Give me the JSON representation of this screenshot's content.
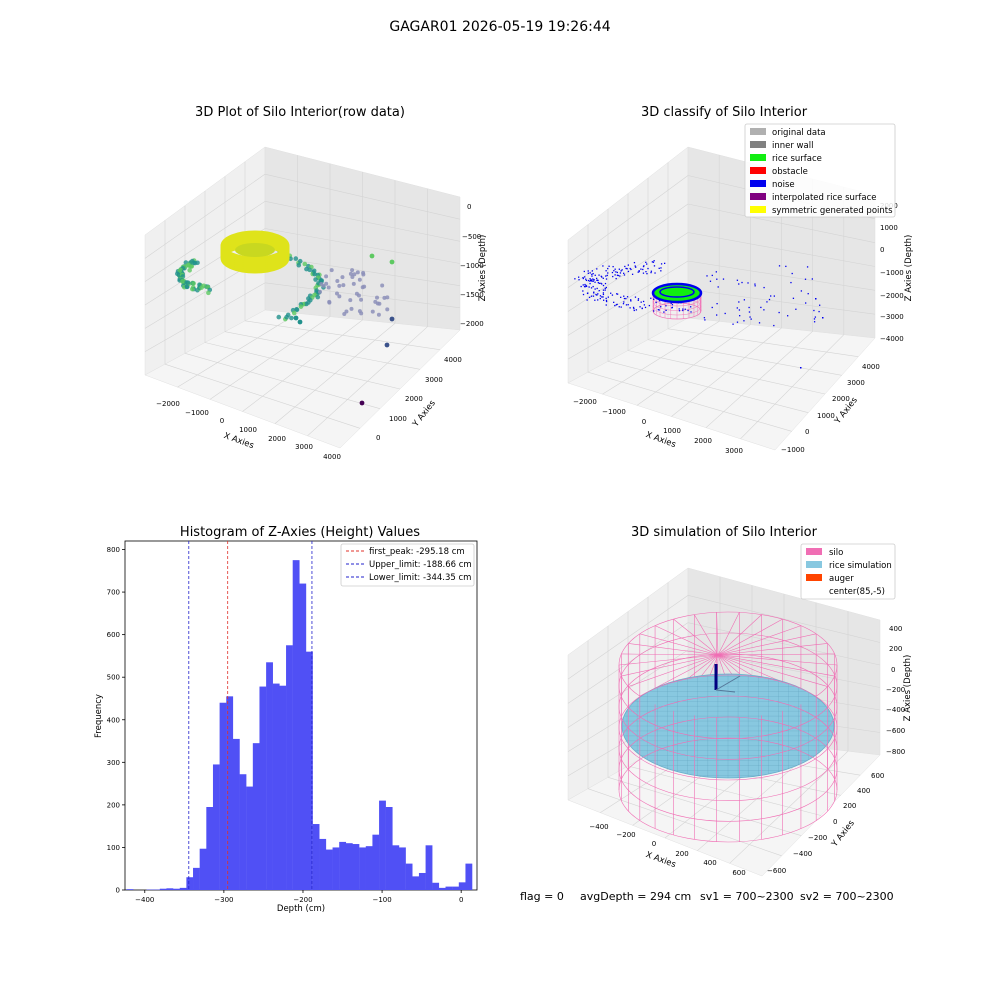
{
  "figure": {
    "suptitle": "GAGAR01 2026-05-19 19:26:44",
    "status": {
      "flag": "flag = 0",
      "avg_depth": "avgDepth = 294 cm",
      "sv1": "sv1 = 700~2300",
      "sv2": "sv2 = 700~2300"
    }
  },
  "colors": {
    "hist_bar": "#5050f5",
    "first_peak": "#e0302a",
    "limits": "#2222cc",
    "silo": "#f06eb4",
    "rice": "#88c8e0",
    "auger": "#ff4400",
    "noise": "#0000ee",
    "rice_surface": "#11ee11"
  },
  "chart_data": [
    {
      "type": "scatter",
      "projection": "3d",
      "title": "3D Plot of Silo Interior(row data)",
      "xlabel": "X Axies",
      "ylabel": "Y Axies",
      "zlabel": "Z Axies (Depth)",
      "x_ticks": [
        "−2000",
        "−1000",
        "0",
        "1000",
        "2000",
        "3000",
        "4000"
      ],
      "y_ticks": [
        "0",
        "1000",
        "2000",
        "3000",
        "4000"
      ],
      "z_ticks": [
        "0",
        "−500",
        "−1000",
        "−1500",
        "−2000"
      ],
      "xlim": [
        -2500,
        4000
      ],
      "ylim": [
        -500,
        4500
      ],
      "zlim": [
        -2300,
        100
      ],
      "colormap": "viridis"
    },
    {
      "type": "scatter",
      "projection": "3d",
      "title": "3D classify of Silo Interior",
      "xlabel": "X Axies",
      "ylabel": "Y Axies",
      "zlabel": "Z Axies (Depth)",
      "x_ticks": [
        "−2000",
        "−1000",
        "0",
        "1000",
        "2000",
        "3000"
      ],
      "y_ticks": [
        "−1000",
        "0",
        "1000",
        "2000",
        "3000",
        "4000"
      ],
      "z_ticks": [
        "−4000",
        "−3000",
        "−2000",
        "−1000",
        "0",
        "1000",
        "2000"
      ],
      "xlim": [
        -2500,
        3500
      ],
      "ylim": [
        -1500,
        4500
      ],
      "zlim": [
        -4000,
        2000
      ],
      "legend_position": "top-right",
      "legend": [
        {
          "label": "original data",
          "color": "#b0b0b0"
        },
        {
          "label": "inner wall",
          "color": "#808080"
        },
        {
          "label": "rice surface",
          "color": "#11ee11"
        },
        {
          "label": "obstacle",
          "color": "#ff0000"
        },
        {
          "label": "noise",
          "color": "#0000ee"
        },
        {
          "label": "interpolated rice surface",
          "color": "#800080"
        },
        {
          "label": "symmetric generated points",
          "color": "#ffff00"
        }
      ]
    },
    {
      "type": "bar",
      "title": "Histogram of Z-Axies (Height) Values",
      "xlabel": "Depth (cm)",
      "ylabel": "Frequency",
      "xlim": [
        -425,
        20
      ],
      "ylim": [
        0,
        820
      ],
      "x_ticks": [
        -400,
        -300,
        -200,
        -100,
        0
      ],
      "y_ticks": [
        0,
        100,
        200,
        300,
        400,
        500,
        600,
        700,
        800
      ],
      "bin_start": -423,
      "bin_width": 8.4,
      "counts": [
        2,
        0,
        0,
        1,
        1,
        3,
        4,
        3,
        5,
        30,
        52,
        97,
        195,
        295,
        440,
        455,
        355,
        272,
        243,
        345,
        478,
        535,
        485,
        480,
        575,
        775,
        720,
        560,
        155,
        120,
        95,
        100,
        113,
        110,
        108,
        100,
        103,
        130,
        210,
        195,
        105,
        100,
        62,
        32,
        40,
        105,
        17,
        5,
        8,
        8,
        18,
        62
      ],
      "vlines": [
        {
          "label": "first_peak: -295.18 cm",
          "x": -295.18,
          "color": "#e0302a"
        },
        {
          "label": "Upper_limit: -188.66 cm",
          "x": -188.66,
          "color": "#2222cc"
        },
        {
          "label": "Lower_limit: -344.35 cm",
          "x": -344.35,
          "color": "#2222cc"
        }
      ],
      "legend_position": "top-right"
    },
    {
      "type": "scatter",
      "projection": "3d",
      "title": "3D simulation of Silo Interior",
      "xlabel": "X Axies",
      "ylabel": "Y Axies",
      "zlabel": "Z Axies (Depth)",
      "x_ticks": [
        "−400",
        "−200",
        "0",
        "200",
        "400",
        "600"
      ],
      "y_ticks": [
        "−600",
        "−400",
        "−200",
        "0",
        "200",
        "400",
        "600"
      ],
      "z_ticks": [
        "−800",
        "−600",
        "−400",
        "−200",
        "0",
        "200",
        "400"
      ],
      "xlim": [
        -600,
        700
      ],
      "ylim": [
        -700,
        700
      ],
      "zlim": [
        -900,
        450
      ],
      "legend_position": "top-right",
      "legend": [
        {
          "label": "silo",
          "color": "#f06eb4"
        },
        {
          "label": "rice simulation",
          "color": "#88c8e0"
        },
        {
          "label": "auger",
          "color": "#ff4400"
        },
        {
          "label": "center(85,-5)",
          "color": "#ffffff"
        }
      ]
    }
  ]
}
